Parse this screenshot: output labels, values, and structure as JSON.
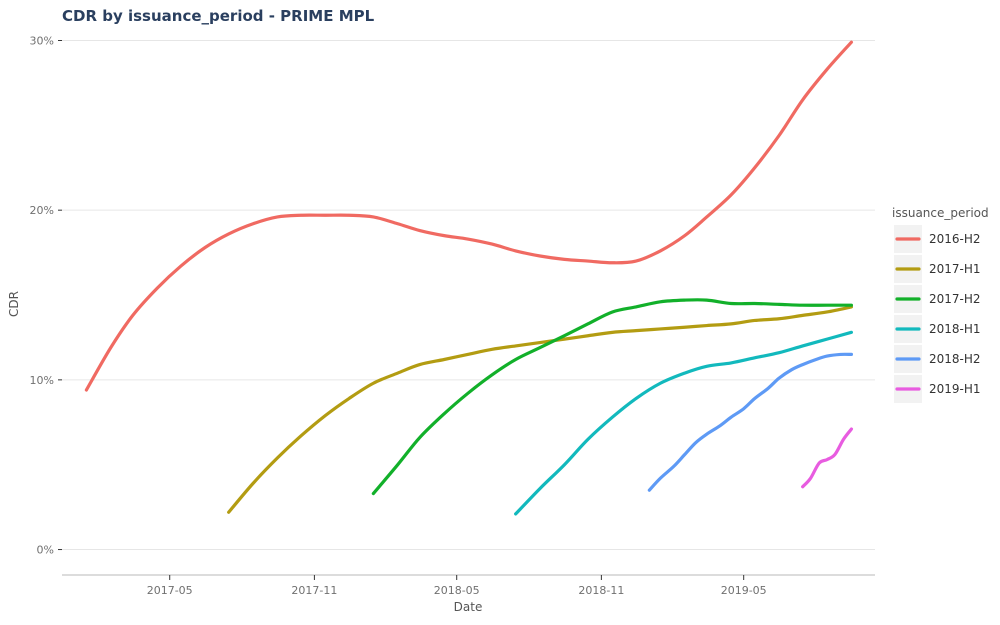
{
  "chart_data": {
    "type": "line",
    "title": "CDR by issuance_period - PRIME MPL",
    "xlabel": "Date",
    "ylabel": "CDR",
    "xlim": [
      "2016-12-15",
      "2019-10-15"
    ],
    "ylim": [
      -1.5,
      30.5
    ],
    "x_ticks": [
      {
        "date": "2017-05-01",
        "label": "2017-05"
      },
      {
        "date": "2017-11-01",
        "label": "2017-11"
      },
      {
        "date": "2018-05-01",
        "label": "2018-05"
      },
      {
        "date": "2018-11-01",
        "label": "2018-11"
      },
      {
        "date": "2019-05-01",
        "label": "2019-05"
      }
    ],
    "y_ticks": [
      {
        "value": 0,
        "label": "0%"
      },
      {
        "value": 10,
        "label": "10%"
      },
      {
        "value": 20,
        "label": "20%"
      },
      {
        "value": 30,
        "label": "30%"
      }
    ],
    "grid": true,
    "legend": {
      "title": "issuance_period",
      "position": "right"
    },
    "series": [
      {
        "name": "2016-H2",
        "color": "#f06a62",
        "x": [
          "2017-01-15",
          "2017-02-15",
          "2017-03-15",
          "2017-04-15",
          "2017-05-15",
          "2017-06-15",
          "2017-07-15",
          "2017-08-15",
          "2017-09-15",
          "2017-10-15",
          "2017-11-15",
          "2017-12-15",
          "2018-01-15",
          "2018-02-15",
          "2018-03-15",
          "2018-04-15",
          "2018-05-15",
          "2018-06-15",
          "2018-07-15",
          "2018-08-15",
          "2018-09-15",
          "2018-10-15",
          "2018-11-15",
          "2018-12-15",
          "2019-01-15",
          "2019-02-15",
          "2019-03-15",
          "2019-04-15",
          "2019-05-15",
          "2019-06-15",
          "2019-07-15",
          "2019-08-15",
          "2019-09-15"
        ],
        "y": [
          9.4,
          11.9,
          13.8,
          15.4,
          16.7,
          17.8,
          18.6,
          19.2,
          19.6,
          19.7,
          19.7,
          19.7,
          19.6,
          19.2,
          18.8,
          18.5,
          18.3,
          18.0,
          17.6,
          17.3,
          17.1,
          17.0,
          16.9,
          17.0,
          17.6,
          18.5,
          19.6,
          20.9,
          22.5,
          24.4,
          26.5,
          28.3,
          29.9
        ]
      },
      {
        "name": "2017-H1",
        "color": "#b39c12",
        "x": [
          "2017-07-15",
          "2017-08-15",
          "2017-09-15",
          "2017-10-15",
          "2017-11-15",
          "2017-12-15",
          "2018-01-15",
          "2018-02-15",
          "2018-03-15",
          "2018-04-15",
          "2018-05-15",
          "2018-06-15",
          "2018-07-15",
          "2018-08-15",
          "2018-09-15",
          "2018-10-15",
          "2018-11-15",
          "2018-12-15",
          "2019-01-15",
          "2019-02-15",
          "2019-03-15",
          "2019-04-15",
          "2019-05-15",
          "2019-06-15",
          "2019-07-15",
          "2019-08-15",
          "2019-09-15"
        ],
        "y": [
          2.2,
          3.9,
          5.4,
          6.7,
          7.9,
          8.9,
          9.8,
          10.4,
          10.9,
          11.2,
          11.5,
          11.8,
          12.0,
          12.2,
          12.4,
          12.6,
          12.8,
          12.9,
          13.0,
          13.1,
          13.2,
          13.3,
          13.5,
          13.6,
          13.8,
          14.0,
          14.3
        ]
      },
      {
        "name": "2017-H2",
        "color": "#12b02a",
        "x": [
          "2018-01-15",
          "2018-02-15",
          "2018-03-15",
          "2018-04-15",
          "2018-05-15",
          "2018-06-15",
          "2018-07-15",
          "2018-08-15",
          "2018-09-15",
          "2018-10-15",
          "2018-11-15",
          "2018-12-15",
          "2019-01-15",
          "2019-02-15",
          "2019-03-15",
          "2019-04-15",
          "2019-05-15",
          "2019-06-15",
          "2019-07-15",
          "2019-08-15",
          "2019-09-15"
        ],
        "y": [
          3.3,
          5.0,
          6.6,
          8.0,
          9.2,
          10.3,
          11.2,
          11.9,
          12.6,
          13.3,
          14.0,
          14.3,
          14.6,
          14.7,
          14.7,
          14.5,
          14.5,
          14.45,
          14.4,
          14.4,
          14.4
        ]
      },
      {
        "name": "2018-H1",
        "color": "#12b9bd",
        "x": [
          "2018-07-15",
          "2018-08-15",
          "2018-09-15",
          "2018-10-15",
          "2018-11-15",
          "2018-12-15",
          "2019-01-15",
          "2019-02-15",
          "2019-03-15",
          "2019-04-15",
          "2019-05-15",
          "2019-06-15",
          "2019-07-15",
          "2019-08-15",
          "2019-09-15"
        ],
        "y": [
          2.1,
          3.6,
          5.0,
          6.5,
          7.8,
          8.9,
          9.8,
          10.4,
          10.8,
          11.0,
          11.3,
          11.6,
          12.0,
          12.4,
          12.8
        ]
      },
      {
        "name": "2018-H2",
        "color": "#5e9af5",
        "x": [
          "2019-01-01",
          "2019-01-15",
          "2019-02-01",
          "2019-02-15",
          "2019-03-01",
          "2019-03-15",
          "2019-04-01",
          "2019-04-15",
          "2019-05-01",
          "2019-05-15",
          "2019-06-01",
          "2019-06-15",
          "2019-07-01",
          "2019-07-15",
          "2019-08-01",
          "2019-08-15",
          "2019-09-01",
          "2019-09-15"
        ],
        "y": [
          3.5,
          4.2,
          4.9,
          5.6,
          6.3,
          6.8,
          7.3,
          7.8,
          8.3,
          8.9,
          9.5,
          10.1,
          10.6,
          10.9,
          11.2,
          11.4,
          11.5,
          11.5
        ]
      },
      {
        "name": "2019-H1",
        "color": "#e85ce0",
        "x": [
          "2019-07-15",
          "2019-07-25",
          "2019-08-05",
          "2019-08-15",
          "2019-08-25",
          "2019-09-05",
          "2019-09-15"
        ],
        "y": [
          3.7,
          4.2,
          5.1,
          5.3,
          5.6,
          6.5,
          7.1
        ]
      }
    ]
  }
}
